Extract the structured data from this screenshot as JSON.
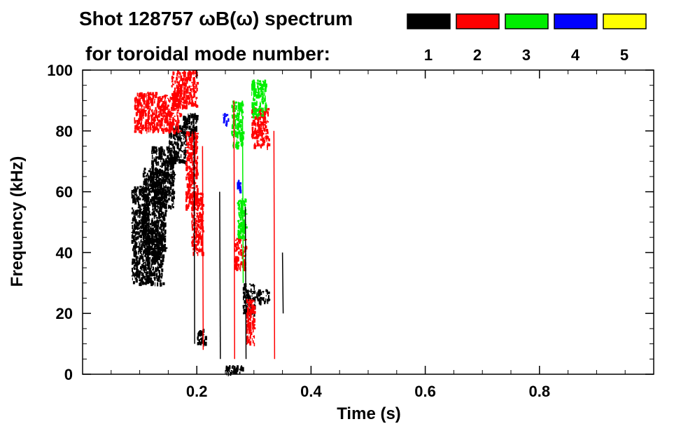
{
  "chart_data": {
    "type": "heatmap",
    "title_line1": "Shot 128757 ωB(ω) spectrum",
    "title_line2": "for toroidal mode number:",
    "xlabel": "Time (s)",
    "ylabel": "Frequency (kHz)",
    "xlim": [
      0.0,
      1.0
    ],
    "ylim": [
      0,
      100
    ],
    "x_ticks": [
      0.2,
      0.4,
      0.6,
      0.8
    ],
    "x_tick_labels": [
      "0.2",
      "0.4",
      "0.6",
      "0.8"
    ],
    "y_ticks": [
      0,
      20,
      40,
      60,
      80,
      100
    ],
    "y_tick_labels": [
      "0",
      "20",
      "40",
      "60",
      "80",
      "100"
    ],
    "legend": {
      "placement": "top-right",
      "entries": [
        {
          "label": "1",
          "color": "#000000"
        },
        {
          "label": "2",
          "color": "#ff0000"
        },
        {
          "label": "3",
          "color": "#00ee00"
        },
        {
          "label": "4",
          "color": "#0000ff"
        },
        {
          "label": "5",
          "color": "#ffff00"
        }
      ]
    },
    "grid": false,
    "regions": [
      {
        "mode": 1,
        "t0": 0.085,
        "t1": 0.115,
        "f0": 30,
        "f1": 62
      },
      {
        "mode": 1,
        "t0": 0.105,
        "t1": 0.145,
        "f0": 40,
        "f1": 68
      },
      {
        "mode": 1,
        "t0": 0.12,
        "t1": 0.16,
        "f0": 55,
        "f1": 75
      },
      {
        "mode": 1,
        "t0": 0.15,
        "t1": 0.18,
        "f0": 70,
        "f1": 82
      },
      {
        "mode": 1,
        "t0": 0.175,
        "t1": 0.2,
        "f0": 78,
        "f1": 86
      },
      {
        "mode": 1,
        "t0": 0.11,
        "t1": 0.14,
        "f0": 30,
        "f1": 45
      },
      {
        "mode": 1,
        "t0": 0.2,
        "t1": 0.215,
        "f0": 10,
        "f1": 15
      },
      {
        "mode": 1,
        "t0": 0.28,
        "t1": 0.3,
        "f0": 20,
        "f1": 30
      },
      {
        "mode": 1,
        "t0": 0.3,
        "t1": 0.325,
        "f0": 24,
        "f1": 28
      },
      {
        "mode": 1,
        "t0": 0.25,
        "t1": 0.28,
        "f0": 0.5,
        "f1": 3
      },
      {
        "mode": 2,
        "t0": 0.09,
        "t1": 0.13,
        "f0": 80,
        "f1": 93
      },
      {
        "mode": 2,
        "t0": 0.13,
        "t1": 0.17,
        "f0": 80,
        "f1": 92
      },
      {
        "mode": 2,
        "t0": 0.155,
        "t1": 0.2,
        "f0": 88,
        "f1": 100
      },
      {
        "mode": 2,
        "t0": 0.18,
        "t1": 0.2,
        "f0": 55,
        "f1": 80
      },
      {
        "mode": 2,
        "t0": 0.19,
        "t1": 0.21,
        "f0": 40,
        "f1": 60
      },
      {
        "mode": 2,
        "t0": 0.265,
        "t1": 0.285,
        "f0": 35,
        "f1": 45
      },
      {
        "mode": 2,
        "t0": 0.285,
        "t1": 0.3,
        "f0": 10,
        "f1": 25
      },
      {
        "mode": 2,
        "t0": 0.295,
        "t1": 0.325,
        "f0": 75,
        "f1": 88
      },
      {
        "mode": 3,
        "t0": 0.26,
        "t1": 0.28,
        "f0": 75,
        "f1": 90
      },
      {
        "mode": 3,
        "t0": 0.295,
        "t1": 0.32,
        "f0": 85,
        "f1": 97
      },
      {
        "mode": 3,
        "t0": 0.27,
        "t1": 0.285,
        "f0": 45,
        "f1": 58
      },
      {
        "mode": 4,
        "t0": 0.245,
        "t1": 0.255,
        "f0": 82,
        "f1": 86
      },
      {
        "mode": 4,
        "t0": 0.27,
        "t1": 0.275,
        "f0": 60,
        "f1": 64
      }
    ],
    "lines": [
      {
        "mode": 1,
        "t": 0.195,
        "f0": 10,
        "f1": 85
      },
      {
        "mode": 1,
        "t": 0.24,
        "f0": 5,
        "f1": 60
      },
      {
        "mode": 1,
        "t": 0.285,
        "f0": 5,
        "f1": 55
      },
      {
        "mode": 1,
        "t": 0.35,
        "f0": 20,
        "f1": 40
      },
      {
        "mode": 2,
        "t": 0.21,
        "f0": 8,
        "f1": 75
      },
      {
        "mode": 2,
        "t": 0.265,
        "f0": 5,
        "f1": 90
      },
      {
        "mode": 2,
        "t": 0.335,
        "f0": 5,
        "f1": 80
      },
      {
        "mode": 3,
        "t": 0.28,
        "f0": 30,
        "f1": 85
      }
    ]
  }
}
